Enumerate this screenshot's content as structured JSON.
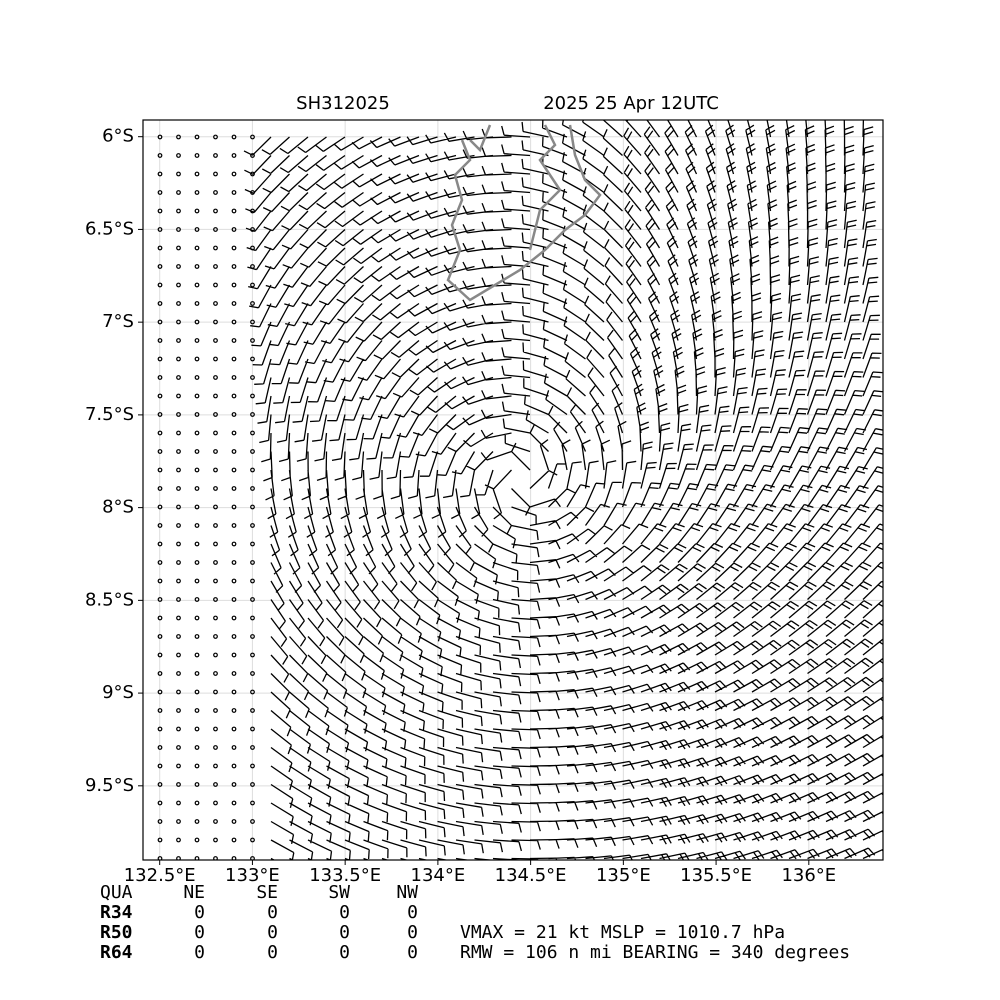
{
  "chart_data": {
    "type": "barb",
    "title_left": "SH312025",
    "title_right": "2025 25 Apr 12UTC",
    "xlim": [
      132.41,
      136.4
    ],
    "ylim": [
      -9.9,
      -5.91
    ],
    "xticks": [
      {
        "value": 132.5,
        "label": "132.5°E"
      },
      {
        "value": 133,
        "label": "133°E"
      },
      {
        "value": 133.5,
        "label": "133.5°E"
      },
      {
        "value": 134,
        "label": "134°E"
      },
      {
        "value": 134.5,
        "label": "134.5°E"
      },
      {
        "value": 135,
        "label": "135°E"
      },
      {
        "value": 135.5,
        "label": "135.5°E"
      },
      {
        "value": 136,
        "label": "136°E"
      }
    ],
    "yticks": [
      {
        "value": -6,
        "label": "6°S"
      },
      {
        "value": -6.5,
        "label": "6.5°S"
      },
      {
        "value": -7,
        "label": "7°S"
      },
      {
        "value": -7.5,
        "label": "7.5°S"
      },
      {
        "value": -8,
        "label": "8°S"
      },
      {
        "value": -8.5,
        "label": "8.5°S"
      },
      {
        "value": -9,
        "label": "9°S"
      },
      {
        "value": -9.5,
        "label": "9.5°S"
      }
    ],
    "grid": true,
    "table": {
      "header": [
        "QUA",
        "NE",
        "SE",
        "SW",
        "NW"
      ],
      "rows": [
        [
          "R34",
          0,
          0,
          0,
          0
        ],
        [
          "R50",
          0,
          0,
          0,
          0
        ],
        [
          "R64",
          0,
          0,
          0,
          0
        ]
      ]
    },
    "info": [
      "VMAX =  21 kt MSLP = 1010.7 hPa",
      "RMW = 106 n mi BEARING = 340 degrees"
    ]
  }
}
